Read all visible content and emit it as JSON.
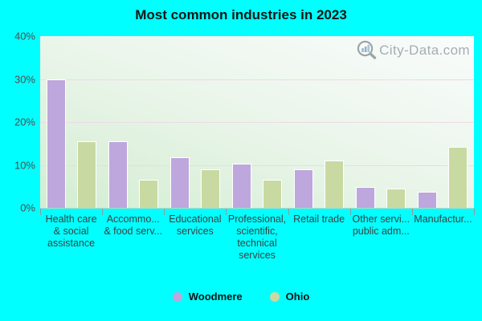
{
  "title": "Most common industries in 2023",
  "watermark": {
    "text": "City-Data.com",
    "icon": "magnifier-bar-chart-icon"
  },
  "colors": {
    "background": "#00ffff",
    "woodmere_bar": "#bda7dd",
    "ohio_bar": "#c9d9a2",
    "bar_border": "#ffffff",
    "gridline": "#eed9e5",
    "axis_text": "#4c4c4c",
    "title_text": "#161616",
    "watermark_text": "#99a0a7"
  },
  "chart_data": {
    "type": "bar",
    "title": "Most common industries in 2023",
    "categories": [
      "Health care & social assistance",
      "Accommo... & food serv...",
      "Educational services",
      "Professional, scientific, technical services",
      "Retail trade",
      "Other servi... public adm...",
      "Manufactur..."
    ],
    "category_label_lines": [
      [
        "Health care",
        "& social",
        "assistance"
      ],
      [
        "Accommo...",
        "& food serv..."
      ],
      [
        "Educational",
        "services"
      ],
      [
        "Professional,",
        "scientific,",
        "technical",
        "services"
      ],
      [
        "Retail trade"
      ],
      [
        "Other servi...",
        "public adm..."
      ],
      [
        "Manufactur..."
      ]
    ],
    "series": [
      {
        "name": "Woodmere",
        "color": "#bda7dd",
        "values": [
          30,
          15.5,
          11.8,
          10.2,
          9,
          4.8,
          3.8
        ]
      },
      {
        "name": "Ohio",
        "color": "#c9d9a2",
        "values": [
          15.5,
          6.5,
          9,
          6.5,
          11,
          4.5,
          14.3
        ]
      }
    ],
    "ylabel": "",
    "xlabel": "",
    "ylim": [
      0,
      40
    ],
    "yticks": [
      "40%",
      "30%",
      "20%",
      "10%",
      "0%"
    ],
    "ytick_values": [
      40,
      30,
      20,
      10,
      0
    ],
    "gridline_values": [
      30,
      20,
      10
    ],
    "grid": true,
    "legend_position": "bottom"
  },
  "legend": {
    "items": [
      {
        "label": "Woodmere",
        "color": "#bda7dd"
      },
      {
        "label": "Ohio",
        "color": "#c9d9a2"
      }
    ]
  }
}
